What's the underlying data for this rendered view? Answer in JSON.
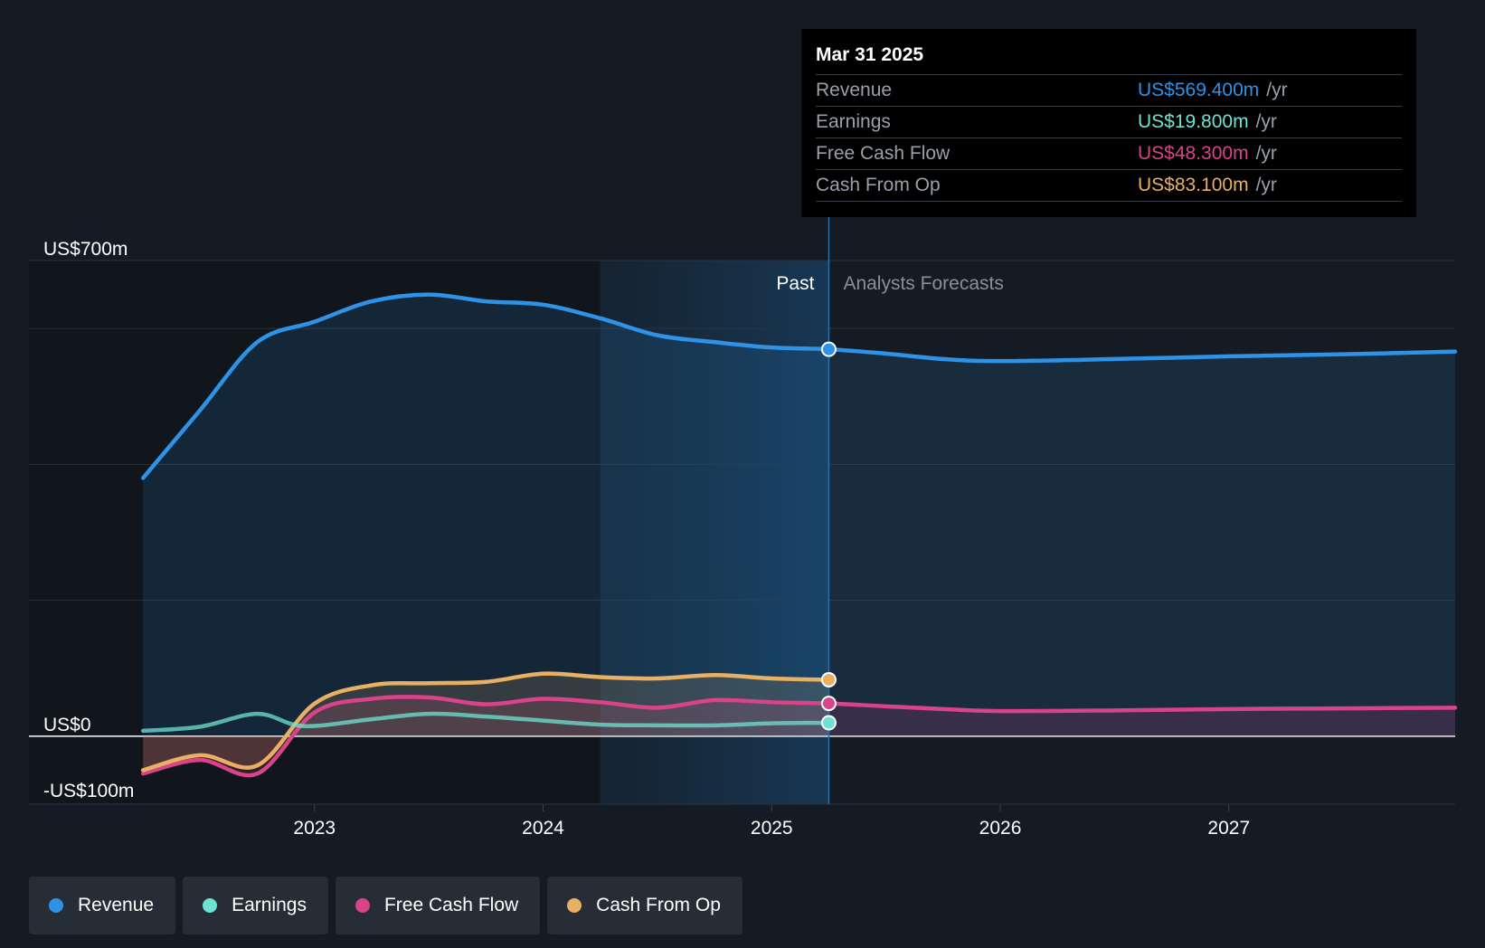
{
  "chart_data": {
    "type": "line",
    "y_axis": {
      "min": -100,
      "max": 700,
      "tick_labels": [
        {
          "value": 700,
          "text": "US$700m"
        },
        {
          "value": 0,
          "text": "US$0"
        },
        {
          "value": -100,
          "text": "-US$100m"
        }
      ],
      "gridlines": [
        700,
        600,
        400,
        200,
        0,
        -100
      ]
    },
    "x_axis": {
      "min": 2022.0,
      "max": 2027.99,
      "ticks": [
        {
          "value": 2023,
          "text": "2023"
        },
        {
          "value": 2024,
          "text": "2024"
        },
        {
          "value": 2025,
          "text": "2025"
        },
        {
          "value": 2026,
          "text": "2026"
        },
        {
          "value": 2027,
          "text": "2027"
        }
      ]
    },
    "past_label": "Past",
    "forecast_label": "Analysts Forecasts",
    "divider_x": 2025.25,
    "highlight_start_x": 2024.25,
    "series": [
      {
        "name": "Revenue",
        "color": "#2e93e6",
        "fill": true,
        "points": [
          [
            2022.25,
            380
          ],
          [
            2022.5,
            480
          ],
          [
            2022.75,
            580
          ],
          [
            2023.0,
            610
          ],
          [
            2023.25,
            640
          ],
          [
            2023.5,
            650
          ],
          [
            2023.75,
            640
          ],
          [
            2024.0,
            635
          ],
          [
            2024.25,
            615
          ],
          [
            2024.5,
            590
          ],
          [
            2024.75,
            580
          ],
          [
            2025.0,
            572
          ],
          [
            2025.25,
            569.4
          ],
          [
            2025.5,
            563
          ],
          [
            2025.75,
            555
          ],
          [
            2026.0,
            552
          ],
          [
            2026.5,
            555
          ],
          [
            2027.0,
            559
          ],
          [
            2027.5,
            562
          ],
          [
            2027.99,
            566
          ]
        ]
      },
      {
        "name": "Earnings",
        "color": "#6fe3d2",
        "fill": false,
        "points": [
          [
            2022.25,
            8
          ],
          [
            2022.5,
            14
          ],
          [
            2022.75,
            33
          ],
          [
            2022.95,
            15
          ],
          [
            2023.25,
            25
          ],
          [
            2023.5,
            33
          ],
          [
            2023.75,
            29
          ],
          [
            2024.0,
            23
          ],
          [
            2024.25,
            17
          ],
          [
            2024.5,
            16
          ],
          [
            2024.75,
            16
          ],
          [
            2025.0,
            19
          ],
          [
            2025.25,
            19.8
          ]
        ]
      },
      {
        "name": "Free Cash Flow",
        "color": "#d9438a",
        "fill": true,
        "points": [
          [
            2022.25,
            -55
          ],
          [
            2022.5,
            -35
          ],
          [
            2022.75,
            -55
          ],
          [
            2023.0,
            35
          ],
          [
            2023.25,
            55
          ],
          [
            2023.5,
            57
          ],
          [
            2023.75,
            47
          ],
          [
            2024.0,
            55
          ],
          [
            2024.25,
            50
          ],
          [
            2024.5,
            42
          ],
          [
            2024.75,
            53
          ],
          [
            2025.0,
            50
          ],
          [
            2025.25,
            48.3
          ],
          [
            2025.5,
            44
          ],
          [
            2025.75,
            40
          ],
          [
            2026.0,
            37
          ],
          [
            2026.5,
            38
          ],
          [
            2027.0,
            40
          ],
          [
            2027.5,
            41
          ],
          [
            2027.99,
            42
          ]
        ]
      },
      {
        "name": "Cash From Op",
        "color": "#e8b062",
        "fill": true,
        "points": [
          [
            2022.25,
            -50
          ],
          [
            2022.5,
            -28
          ],
          [
            2022.75,
            -43
          ],
          [
            2023.0,
            48
          ],
          [
            2023.25,
            75
          ],
          [
            2023.5,
            78
          ],
          [
            2023.75,
            80
          ],
          [
            2024.0,
            92
          ],
          [
            2024.25,
            87
          ],
          [
            2024.5,
            85
          ],
          [
            2024.75,
            90
          ],
          [
            2025.0,
            85
          ],
          [
            2025.25,
            83.1
          ]
        ]
      }
    ]
  },
  "tooltip": {
    "date": "Mar 31 2025",
    "unit": "/yr",
    "rows": [
      {
        "label": "Revenue",
        "value": "US$569.400m",
        "color": "#2e93e6"
      },
      {
        "label": "Earnings",
        "value": "US$19.800m",
        "color": "#6fe3d2"
      },
      {
        "label": "Free Cash Flow",
        "value": "US$48.300m",
        "color": "#d9438a"
      },
      {
        "label": "Cash From Op",
        "value": "US$83.100m",
        "color": "#e8b062"
      }
    ]
  },
  "legend": [
    {
      "label": "Revenue",
      "color": "#2e93e6"
    },
    {
      "label": "Earnings",
      "color": "#6fe3d2"
    },
    {
      "label": "Free Cash Flow",
      "color": "#d9438a"
    },
    {
      "label": "Cash From Op",
      "color": "#e8b062"
    }
  ]
}
